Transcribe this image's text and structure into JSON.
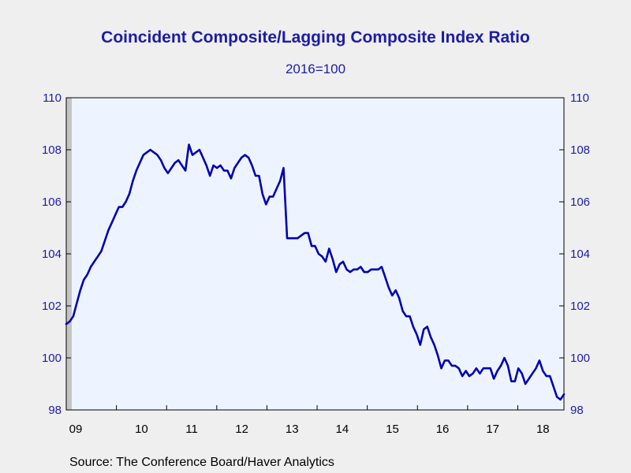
{
  "chart_data": {
    "type": "line",
    "title": "Coincident Composite/Lagging Composite Index Ratio",
    "subtitle": "2016=100",
    "source": "Source:  The Conference Board/Haver Analytics",
    "xlabel": "",
    "ylabel": "",
    "ylim": [
      98,
      110
    ],
    "y_ticks": [
      98,
      100,
      102,
      104,
      106,
      108,
      110
    ],
    "x_tick_labels": [
      "09",
      "10",
      "11",
      "12",
      "13",
      "14",
      "15",
      "16",
      "17",
      "18"
    ],
    "x_start_year": 2009,
    "x_end_year": 2018.92,
    "grid": false,
    "plot_background": "#eef4ff",
    "page_background": "#efefef",
    "line_color": "#0000b4",
    "text_color": "#1c1ca8",
    "shaded_recession": [
      2009.0,
      2009.5
    ],
    "series": [
      {
        "values": [
          101.3,
          101.4,
          101.6,
          102.1,
          102.6,
          103.0,
          103.2,
          103.5,
          103.7,
          103.9,
          104.1,
          104.5,
          104.9,
          105.2,
          105.5,
          105.8,
          105.8,
          106.0,
          106.3,
          106.8,
          107.2,
          107.5,
          107.8,
          107.9,
          108.0,
          107.9,
          107.8,
          107.6,
          107.3,
          107.1,
          107.3,
          107.5,
          107.6,
          107.4,
          107.2,
          108.2,
          107.8,
          107.9,
          108.0,
          107.7,
          107.4,
          107.0,
          107.4,
          107.3,
          107.4,
          107.2,
          107.2,
          106.9,
          107.3,
          107.5,
          107.7,
          107.8,
          107.7,
          107.4,
          107.0,
          107.0,
          106.3,
          105.9,
          106.2,
          106.2,
          106.5,
          106.8,
          107.3,
          104.6,
          104.6,
          104.6,
          104.6,
          104.7,
          104.8,
          104.8,
          104.3,
          104.3,
          104.0,
          103.9,
          103.7,
          104.2,
          103.8,
          103.3,
          103.6,
          103.7,
          103.4,
          103.3,
          103.4,
          103.4,
          103.5,
          103.3,
          103.3,
          103.4,
          103.4,
          103.4,
          103.5,
          103.1,
          102.7,
          102.4,
          102.6,
          102.3,
          101.8,
          101.6,
          101.6,
          101.2,
          100.9,
          100.5,
          101.1,
          101.2,
          100.8,
          100.5,
          100.1,
          99.6,
          99.9,
          99.9,
          99.7,
          99.7,
          99.6,
          99.3,
          99.5,
          99.3,
          99.4,
          99.6,
          99.4,
          99.6,
          99.6,
          99.6,
          99.2,
          99.5,
          99.7,
          100.0,
          99.7,
          99.1,
          99.1,
          99.6,
          99.4,
          99.0,
          99.2,
          99.4,
          99.6,
          99.9,
          99.5,
          99.3,
          99.3,
          98.9,
          98.5,
          98.4,
          98.6
        ]
      }
    ]
  }
}
